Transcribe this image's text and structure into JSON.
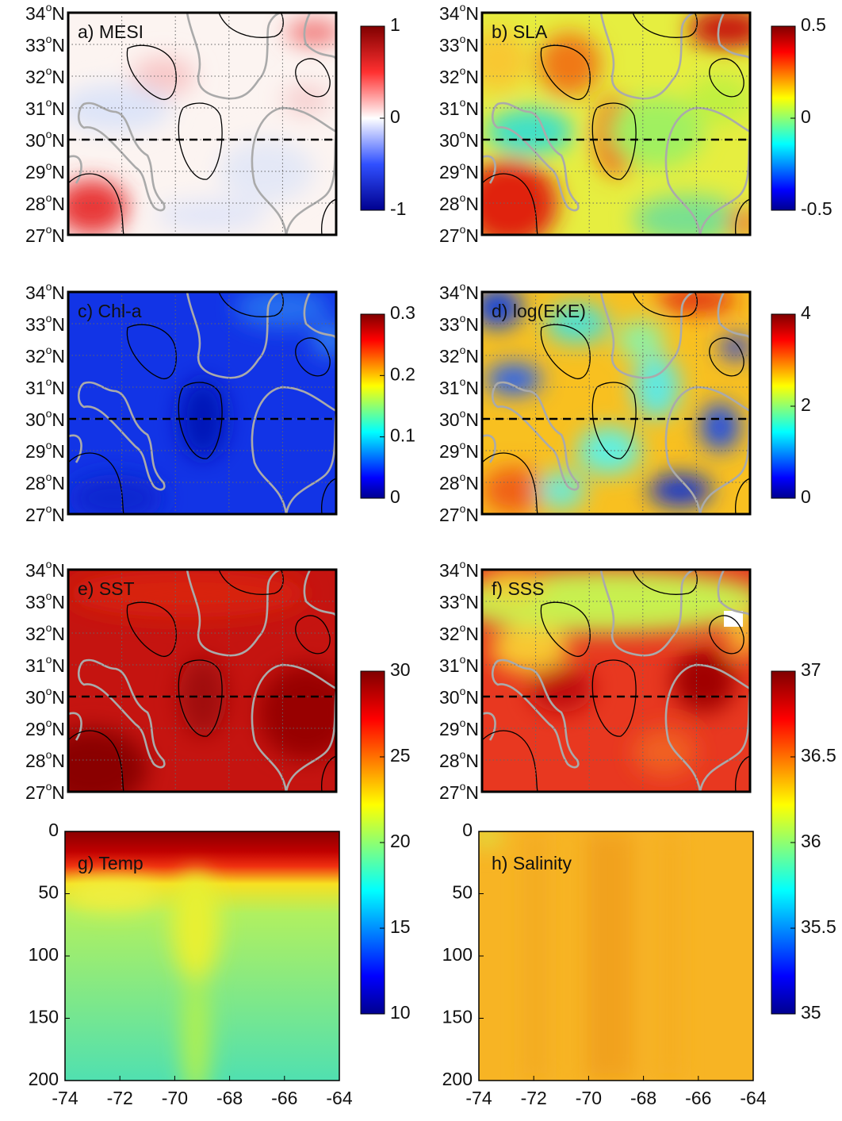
{
  "maps": {
    "lat_lim": [
      27,
      34
    ],
    "lon_lim": [
      -74,
      -64
    ],
    "deg": "o",
    "hemi": "N",
    "lat_ticks": [
      {
        "value": 27,
        "label": "27"
      },
      {
        "value": 28,
        "label": "28"
      },
      {
        "value": 29,
        "label": "29"
      },
      {
        "value": 30,
        "label": "30"
      },
      {
        "value": 31,
        "label": "31"
      },
      {
        "value": 32,
        "label": "32"
      },
      {
        "value": 33,
        "label": "33"
      },
      {
        "value": 34,
        "label": "34"
      }
    ]
  },
  "panels": [
    {
      "label": "a) MESI"
    },
    {
      "label": "b) SLA"
    },
    {
      "label": "c) Chl-a"
    },
    {
      "label": "d) log(EKE)"
    },
    {
      "label": "e) SST"
    },
    {
      "label": "f) SSS"
    },
    {
      "label": "g) Temp"
    },
    {
      "label": "h) Salinity"
    }
  ],
  "colorbars": [
    {
      "lim": [
        -1,
        1
      ],
      "ticks": [
        -1,
        0,
        1
      ]
    },
    {
      "lim": [
        -0.5,
        0.5
      ],
      "ticks": [
        -0.5,
        0,
        0.5
      ]
    },
    {
      "lim": [
        0,
        0.3
      ],
      "ticks": [
        0,
        0.1,
        0.2,
        0.3
      ]
    },
    {
      "lim": [
        0,
        4
      ],
      "ticks": [
        0,
        2,
        4
      ]
    },
    {
      "lim": [
        10,
        30
      ],
      "ticks": [
        10,
        15,
        20,
        25,
        30
      ]
    },
    {
      "lim": [
        35,
        37
      ],
      "ticks": [
        35,
        35.5,
        36,
        36.5,
        37
      ]
    }
  ],
  "sections": {
    "ylim": [
      0,
      200
    ],
    "yticks": [
      0,
      50,
      100,
      150,
      200
    ],
    "xlim": [
      -74,
      -64
    ],
    "xticks": [
      -74,
      -72,
      -70,
      -68,
      -66,
      -64
    ]
  }
}
